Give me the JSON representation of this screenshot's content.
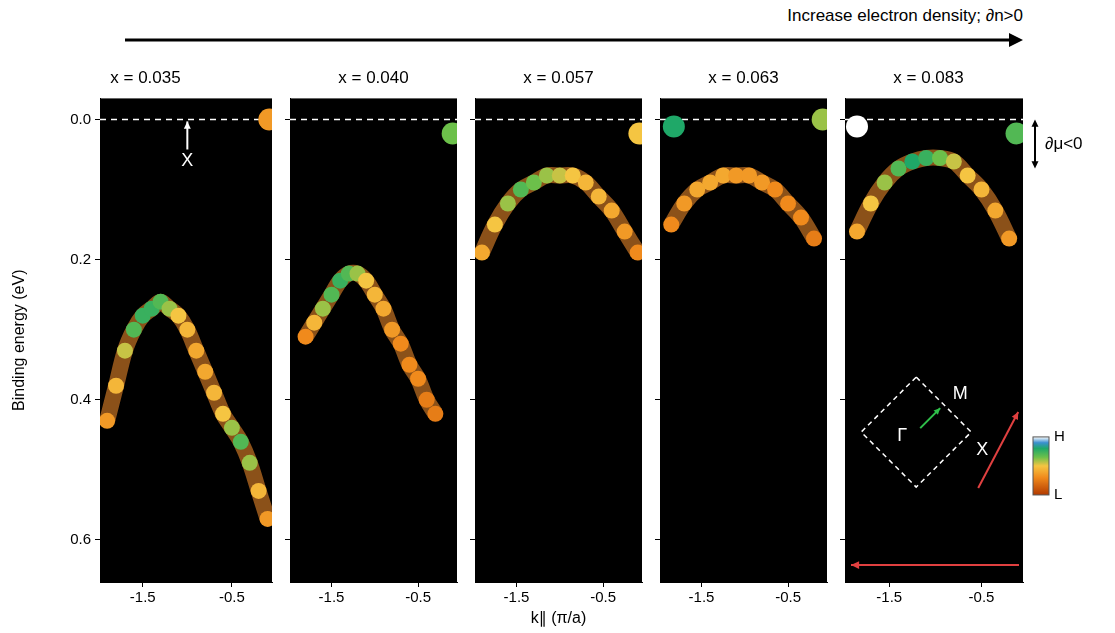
{
  "header": "Increase electron density; ∂n>0",
  "colorbar": {
    "range": [
      0,
      1
    ],
    "ticks": [
      {
        "value": 1,
        "label": "H"
      },
      {
        "value": 0,
        "label": "L"
      }
    ]
  },
  "chart_data": [
    {
      "type": "scatter",
      "title": "x = 0.035",
      "ylabel": "Binding energy (eV)",
      "grid": false,
      "xlim": [
        -1.98,
        -0.05
      ],
      "xticks": [
        -1.5,
        -0.5
      ],
      "ylim": [
        -0.03,
        0.66
      ],
      "yticks": [
        {
          "value": 0,
          "label": "0.0"
        },
        0.2,
        0.4,
        0.6
      ],
      "hline": 0,
      "annotations": [
        {
          "text": "X",
          "x": -1.0,
          "y": 0.06
        }
      ],
      "series": [
        {
          "color": "#e8872a",
          "marker": "circle",
          "line_style": "solid",
          "x": [
            -1.9,
            -1.8,
            -1.7,
            -1.6,
            -1.5,
            -1.4,
            -1.3,
            -1.2,
            -1.1,
            -1.0,
            -0.9,
            -0.8,
            -0.7,
            -0.6,
            -0.5,
            -0.4,
            -0.3,
            -0.2,
            -0.1
          ],
          "values": [
            0.43,
            0.38,
            0.33,
            0.3,
            0.28,
            0.27,
            0.26,
            0.27,
            0.28,
            0.3,
            0.33,
            0.36,
            0.39,
            0.42,
            0.44,
            0.46,
            0.49,
            0.53,
            0.57
          ],
          "intensity": [
            0.35,
            0.45,
            0.55,
            0.7,
            0.75,
            0.75,
            0.7,
            0.6,
            0.5,
            0.45,
            0.4,
            0.4,
            0.45,
            0.5,
            0.6,
            0.7,
            0.6,
            0.45,
            0.35
          ]
        },
        {
          "color": "#e8872a",
          "marker": "circle",
          "line_style": "none",
          "x": [
            -0.08
          ],
          "values": [
            0.0
          ],
          "intensity": [
            0.35
          ]
        }
      ]
    },
    {
      "type": "scatter",
      "title": "x = 0.040",
      "grid": false,
      "tick_labels": "x",
      "xlim": [
        -1.98,
        -0.05
      ],
      "xticks": [
        -1.5,
        -0.5
      ],
      "ylim": [
        -0.03,
        0.66
      ],
      "yticks": [
        {
          "value": 0,
          "label": "0.0"
        },
        0.2,
        0.4,
        0.6
      ],
      "hline": 0,
      "series": [
        {
          "color": "#e8872a",
          "marker": "circle",
          "line_style": "solid",
          "x": [
            -1.8,
            -1.7,
            -1.6,
            -1.5,
            -1.4,
            -1.3,
            -1.2,
            -1.1,
            -1.0,
            -0.9,
            -0.8,
            -0.7,
            -0.6,
            -0.5,
            -0.4,
            -0.3
          ],
          "values": [
            0.31,
            0.29,
            0.27,
            0.25,
            0.23,
            0.22,
            0.22,
            0.23,
            0.25,
            0.27,
            0.3,
            0.32,
            0.35,
            0.37,
            0.4,
            0.42
          ],
          "intensity": [
            0.3,
            0.45,
            0.6,
            0.7,
            0.75,
            0.7,
            0.6,
            0.5,
            0.45,
            0.4,
            0.35,
            0.3,
            0.3,
            0.3,
            0.25,
            0.25
          ]
        },
        {
          "color": "#e8872a",
          "marker": "circle",
          "line_style": "none",
          "x": [
            -0.1
          ],
          "values": [
            0.02
          ],
          "intensity": [
            0.65
          ]
        }
      ]
    },
    {
      "type": "scatter",
      "title": "x = 0.057",
      "xlabel": "k∥ (π/a)",
      "grid": false,
      "tick_labels": "x",
      "xlim": [
        -1.98,
        -0.05
      ],
      "xticks": [
        -1.5,
        -0.5
      ],
      "ylim": [
        -0.03,
        0.66
      ],
      "yticks": [
        {
          "value": 0,
          "label": "0.0"
        },
        0.2,
        0.4,
        0.6
      ],
      "hline": 0,
      "series": [
        {
          "color": "#e8872a",
          "marker": "circle",
          "line_style": "solid",
          "x": [
            -1.9,
            -1.75,
            -1.6,
            -1.45,
            -1.3,
            -1.15,
            -1.0,
            -0.85,
            -0.7,
            -0.55,
            -0.4,
            -0.25,
            -0.1
          ],
          "values": [
            0.19,
            0.15,
            0.12,
            0.1,
            0.09,
            0.08,
            0.08,
            0.08,
            0.09,
            0.11,
            0.13,
            0.16,
            0.19
          ],
          "intensity": [
            0.4,
            0.5,
            0.6,
            0.7,
            0.65,
            0.6,
            0.55,
            0.5,
            0.45,
            0.45,
            0.4,
            0.35,
            0.3
          ]
        },
        {
          "color": "#e8872a",
          "marker": "circle",
          "line_style": "none",
          "x": [
            -0.08
          ],
          "values": [
            0.02
          ],
          "intensity": [
            0.5
          ]
        }
      ]
    },
    {
      "type": "scatter",
      "title": "x = 0.063",
      "grid": false,
      "tick_labels": "x",
      "xlim": [
        -1.98,
        -0.05
      ],
      "xticks": [
        -1.5,
        -0.5
      ],
      "ylim": [
        -0.03,
        0.66
      ],
      "yticks": [
        {
          "value": 0,
          "label": "0.0"
        },
        0.2,
        0.4,
        0.6
      ],
      "hline": 0,
      "series": [
        {
          "color": "#e8872a",
          "marker": "circle",
          "line_style": "solid",
          "x": [
            -1.85,
            -1.7,
            -1.55,
            -1.4,
            -1.25,
            -1.1,
            -0.95,
            -0.8,
            -0.65,
            -0.5,
            -0.35,
            -0.2
          ],
          "values": [
            0.15,
            0.12,
            0.1,
            0.09,
            0.08,
            0.08,
            0.08,
            0.09,
            0.1,
            0.12,
            0.14,
            0.17
          ],
          "intensity": [
            0.3,
            0.35,
            0.4,
            0.4,
            0.4,
            0.35,
            0.35,
            0.35,
            0.3,
            0.3,
            0.3,
            0.25
          ]
        },
        {
          "color": "#e8872a",
          "marker": "circle",
          "line_style": "none",
          "x": [
            -1.82,
            -0.1
          ],
          "values": [
            0.01,
            0.0
          ],
          "intensity": [
            0.8,
            0.6
          ]
        }
      ]
    },
    {
      "type": "scatter",
      "title": "x = 0.083",
      "grid": false,
      "tick_labels": "x",
      "xlim": [
        -1.98,
        -0.05
      ],
      "xticks": [
        -1.5,
        -0.5
      ],
      "ylim": [
        -0.03,
        0.66
      ],
      "yticks": [
        {
          "value": 0,
          "label": "0.0"
        },
        0.2,
        0.4,
        0.6
      ],
      "hline": 0,
      "side_annotation": {
        "text": "∂μ<0",
        "span": [
          0.0,
          0.07
        ]
      },
      "inset_labels": [
        "Γ",
        "M",
        "X"
      ],
      "series": [
        {
          "color": "#e8872a",
          "marker": "circle",
          "line_style": "solid",
          "x": [
            -1.85,
            -1.7,
            -1.55,
            -1.4,
            -1.25,
            -1.1,
            -0.95,
            -0.8,
            -0.65,
            -0.5,
            -0.35,
            -0.2
          ],
          "values": [
            0.16,
            0.12,
            0.09,
            0.07,
            0.06,
            0.055,
            0.055,
            0.06,
            0.08,
            0.1,
            0.13,
            0.17
          ],
          "intensity": [
            0.4,
            0.5,
            0.6,
            0.7,
            0.8,
            0.75,
            0.65,
            0.55,
            0.5,
            0.45,
            0.4,
            0.35
          ]
        },
        {
          "color": "#e8872a",
          "marker": "circle",
          "line_style": "none",
          "x": [
            -1.85,
            -0.12
          ],
          "values": [
            0.01,
            0.02
          ],
          "intensity": [
            1.0,
            0.7
          ]
        }
      ]
    }
  ]
}
